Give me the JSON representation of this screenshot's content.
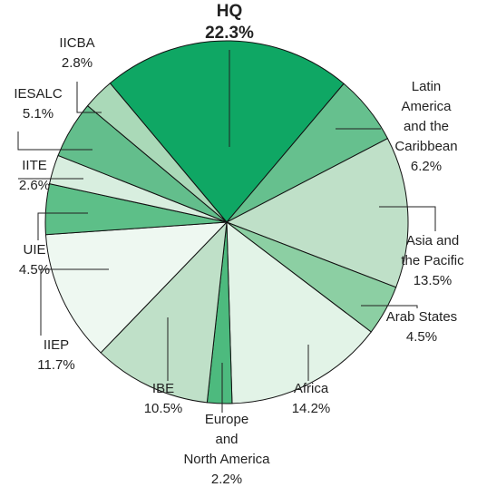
{
  "chart_data": {
    "type": "pie",
    "categories": [
      "HQ",
      "Latin\nAmerica\nand the\nCaribbean",
      "Asia and\nthe Pacific",
      "Arab States",
      "Africa",
      "Europe\nand\nNorth America",
      "IBE",
      "IIEP",
      "UIE",
      "IITE",
      "IESALC",
      "IICBA"
    ],
    "values": [
      22.3,
      6.2,
      13.5,
      4.5,
      14.2,
      2.2,
      10.5,
      11.7,
      4.5,
      2.6,
      5.1,
      2.8
    ],
    "value_labels": [
      "22.3%",
      "6.2%",
      "13.5%",
      "4.5%",
      "14.2%",
      "2.2%",
      "10.5%",
      "11.7%",
      "4.5%",
      "2.6%",
      "5.1%",
      "2.8%"
    ],
    "colors": [
      "#0fa764",
      "#66c08e",
      "#bfe0c8",
      "#8ccfa3",
      "#e2f3e7",
      "#4dba7e",
      "#bfe0c8",
      "#eef8f1",
      "#5dbf88",
      "#d8eedf",
      "#63be8c",
      "#aad9b8"
    ]
  }
}
